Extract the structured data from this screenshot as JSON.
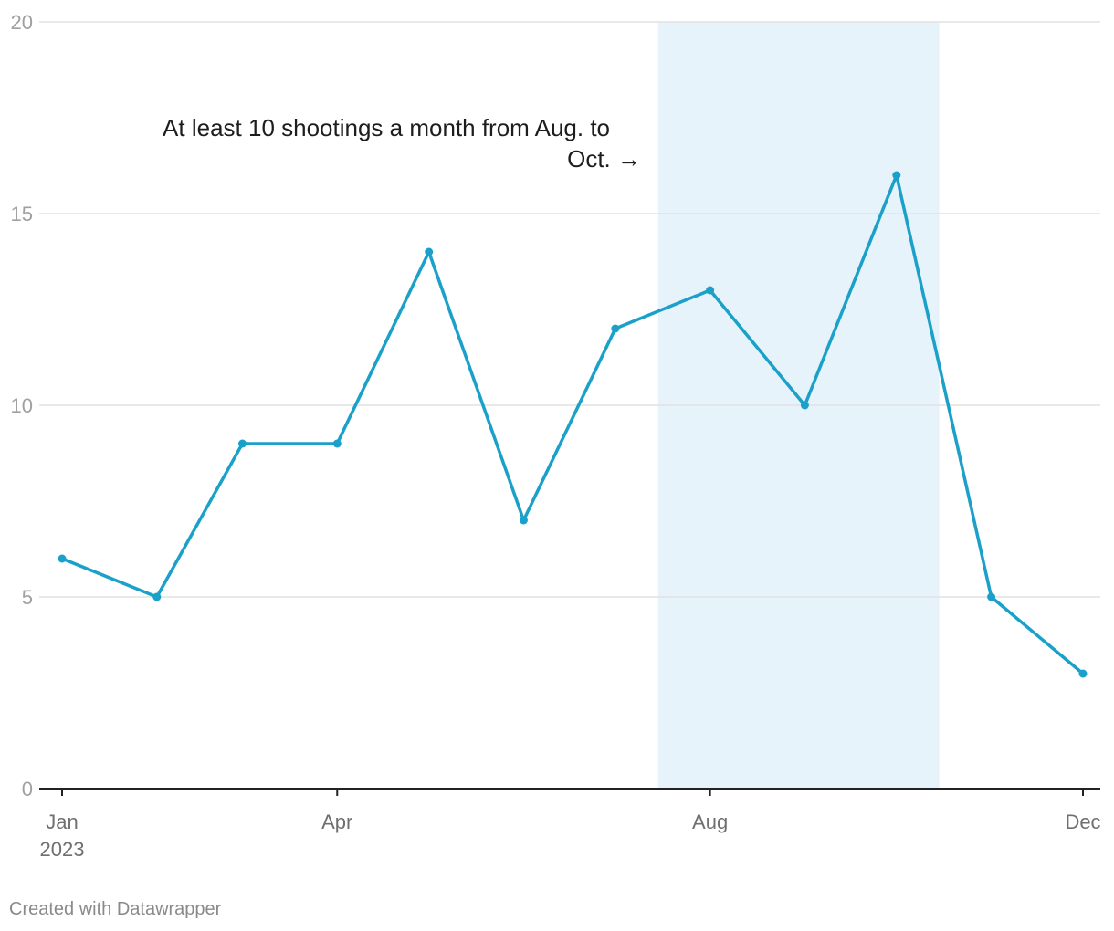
{
  "chart_data": {
    "type": "line",
    "title": "",
    "xlabel": "",
    "ylabel": "",
    "x": [
      "2023-01",
      "2023-02",
      "2023-03",
      "2023-04",
      "2023-05",
      "2023-06",
      "2023-07",
      "2023-08",
      "2023-09",
      "2023-10",
      "2023-11",
      "2023-12"
    ],
    "series": [
      {
        "values": [
          6,
          5,
          9,
          9,
          14,
          7,
          12,
          13,
          10,
          16,
          5,
          3
        ]
      }
    ],
    "ylim": [
      0,
      20
    ],
    "yticks": [
      0,
      5,
      10,
      15,
      20
    ],
    "xticks": [
      {
        "x": "2023-01",
        "label": "Jan",
        "sublabel": "2023"
      },
      {
        "x": "2023-04",
        "label": "Apr"
      },
      {
        "x": "2023-08",
        "label": "Aug"
      },
      {
        "x": "2023-12",
        "label": "Dec"
      }
    ],
    "highlight_range": {
      "from": "2023-07-15",
      "to": "2023-10-15"
    },
    "annotation": {
      "line1": "At least 10 shootings a month from Aug. to",
      "line2": "Oct. →"
    },
    "grid": true,
    "legend": "none",
    "colors": {
      "line": "#1ba1c9",
      "highlight": "#e6f3fa",
      "grid": "#e2e2e2",
      "axis": "#222222"
    }
  },
  "footer": {
    "credit": "Created with Datawrapper"
  }
}
